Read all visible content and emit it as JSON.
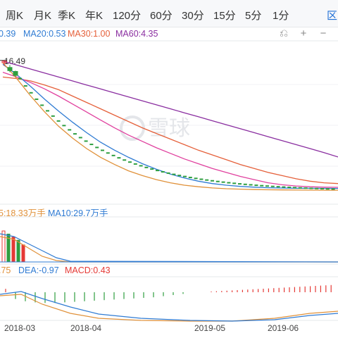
{
  "period_tabs": [
    {
      "label": "周K",
      "active": false
    },
    {
      "label": "月K",
      "active": false
    },
    {
      "label": "季K",
      "active": false
    },
    {
      "label": "年K",
      "active": false
    },
    {
      "label": "120分",
      "active": false
    },
    {
      "label": "60分",
      "active": false
    },
    {
      "label": "30分",
      "active": false
    },
    {
      "label": "15分",
      "active": false
    },
    {
      "label": "5分",
      "active": false
    },
    {
      "label": "1分",
      "active": false
    },
    {
      "label": "区",
      "active": true
    }
  ],
  "ma_legend": {
    "ma10": "0.39",
    "ma20": "MA20:0.53",
    "ma30": "MA30:1.00",
    "ma60": "MA60:4.35"
  },
  "controls": {
    "reset_icon": "reset-icon",
    "zoom_in_icon": "plus-icon",
    "zoom_out_icon": "minus-icon"
  },
  "price_label": "16.49",
  "watermark": "雪球",
  "volume_legend": {
    "ma5": "5:18.33万手",
    "ma10": "MA10:29.7万手"
  },
  "macd_legend": {
    "dif": ".75",
    "dea": "DEA:-0.97",
    "macd": "MACD:0.43"
  },
  "x_axis_labels": [
    "2018-03",
    "2018-04",
    "2019-05",
    "2019-06"
  ],
  "colors": {
    "ma5": "#e0913a",
    "ma10": "#2f7bd3",
    "ma20": "#e0409e",
    "ma30": "#e5603a",
    "ma60": "#8a2ea0",
    "up": "#e53935",
    "down": "#2e9e40",
    "active_tab": "#1f6fd6"
  },
  "chart_data": {
    "type": "line",
    "price_marker": 16.49,
    "price_series": [
      {
        "name": "MA60",
        "color": "#8a2ea0",
        "values": [
          16.4,
          15.9,
          15.4,
          14.9,
          14.4,
          13.9,
          13.4,
          12.9,
          12.4,
          11.9,
          11.4,
          10.9,
          10.4,
          9.9,
          9.4,
          8.9,
          8.4,
          7.9,
          7.4,
          6.9,
          6.4,
          5.9,
          5.4,
          4.9,
          4.35
        ]
      },
      {
        "name": "MA30",
        "color": "#e5603a",
        "values": [
          14.4,
          14.2,
          13.9,
          13.4,
          12.8,
          12.0,
          11.2,
          10.4,
          9.6,
          8.8,
          8.0,
          7.3,
          6.6,
          5.9,
          5.2,
          4.6,
          4.0,
          3.4,
          2.9,
          2.4,
          2.0,
          1.6,
          1.3,
          1.1,
          1.0
        ]
      },
      {
        "name": "MA20",
        "color": "#e0409e",
        "values": [
          15.0,
          14.4,
          13.7,
          12.9,
          12.0,
          11.0,
          10.0,
          9.0,
          8.0,
          7.1,
          6.3,
          5.5,
          4.8,
          4.1,
          3.5,
          2.9,
          2.4,
          1.9,
          1.5,
          1.1,
          0.85,
          0.7,
          0.6,
          0.55,
          0.53
        ]
      },
      {
        "name": "MA10",
        "color": "#2f7bd3",
        "values": [
          16.0,
          14.7,
          13.2,
          11.6,
          10.1,
          8.7,
          7.4,
          6.2,
          5.2,
          4.3,
          3.5,
          2.8,
          2.2,
          1.7,
          1.3,
          1.0,
          0.8,
          0.65,
          0.55,
          0.48,
          0.44,
          0.42,
          0.41,
          0.4,
          0.39
        ]
      },
      {
        "name": "MA5",
        "color": "#e0913a",
        "values": [
          16.2,
          14.2,
          12.0,
          10.0,
          8.2,
          6.7,
          5.4,
          4.3,
          3.4,
          2.6,
          2.0,
          1.5,
          1.1,
          0.8,
          0.6,
          0.45,
          0.35,
          0.3,
          0.25,
          0.22,
          0.2,
          0.19,
          0.18,
          0.17,
          0.17
        ]
      }
    ],
    "candles": [
      {
        "open": 16.2,
        "close": 16.4,
        "high": 16.49,
        "low": 15.8
      },
      {
        "open": 15.6,
        "close": 15.2,
        "high": 15.9,
        "low": 15.0
      },
      {
        "open": 15.1,
        "close": 14.6,
        "high": 15.2,
        "low": 14.4
      }
    ],
    "volume_bars": [
      40,
      36,
      32,
      28,
      22
    ],
    "macd_hist": [
      0.6,
      -1.2,
      -1.6,
      -1.8,
      -1.9,
      -1.9,
      -1.8,
      -1.7,
      -1.6,
      -1.5,
      -1.4,
      -1.3,
      -1.2,
      -1.1,
      -1.0,
      -0.9,
      -0.7,
      -0.5,
      -0.3
    ]
  }
}
